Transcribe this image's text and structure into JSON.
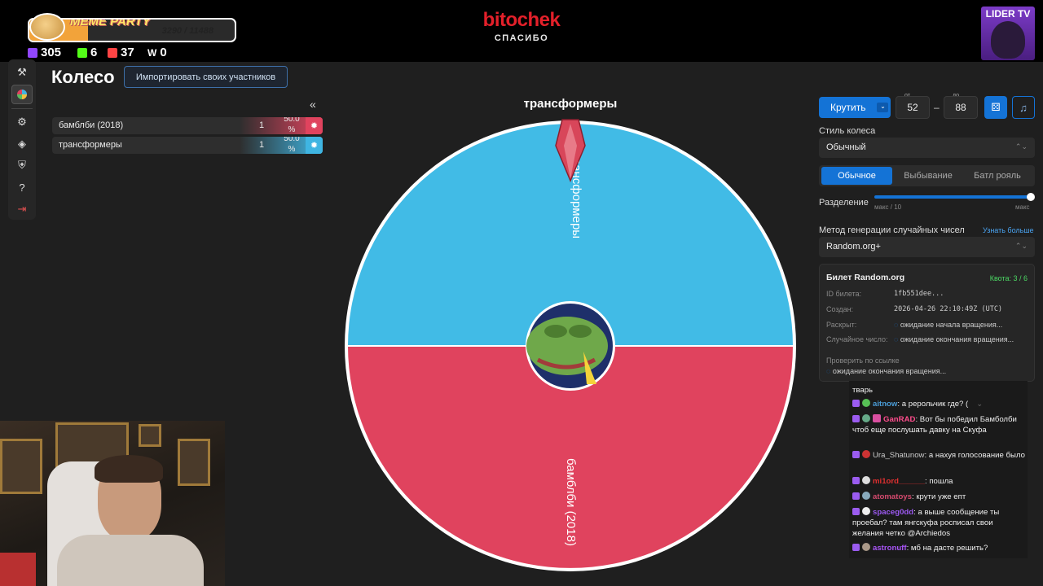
{
  "overlay": {
    "meme_title": "MEME PARTY",
    "meme_count": "3290 / 11488",
    "meme_progress": 0.286,
    "stats": [
      {
        "icon": "twitch-icon",
        "value": "305",
        "color": "#9146ff"
      },
      {
        "icon": "kick-icon",
        "value": "6",
        "color": "#53fc18"
      },
      {
        "icon": "vk-live-icon",
        "value": "37",
        "color": "#ff4444"
      },
      {
        "icon": "w-icon",
        "value": "0",
        "color": "#ffffff"
      }
    ],
    "brand": "bitochek",
    "brand_sub": "СПАСИБО",
    "channel_badge": "LIDER TV"
  },
  "sidebar": {
    "items": [
      {
        "icon": "gavel-icon",
        "active": false
      },
      {
        "icon": "wheel-icon",
        "active": true
      },
      {
        "icon": "gear-icon",
        "active": false
      },
      {
        "icon": "layers-icon",
        "active": false
      },
      {
        "icon": "shield-icon",
        "active": false
      },
      {
        "icon": "help-icon",
        "active": false
      },
      {
        "icon": "logout-icon",
        "active": false
      }
    ]
  },
  "main": {
    "title": "Колесо",
    "import_label": "Импортировать своих участников",
    "collapse_label": "«",
    "participants": [
      {
        "name": "бамблби (2018)",
        "weight": "1",
        "percent": "50.0\n%",
        "color": "#e0435e"
      },
      {
        "name": "трансформеры",
        "weight": "1",
        "percent": "50.0\n%",
        "color": "#3fb5e2"
      }
    ]
  },
  "wheel": {
    "current": "трансформеры",
    "colors": {
      "top": "#41bbe6",
      "bottom": "#e0435e",
      "pointer": "#d8465a"
    },
    "segments": [
      {
        "label": "трансформеры",
        "color": "#41bbe6",
        "value": 50
      },
      {
        "label": "бамблби (2018)",
        "color": "#e0435e",
        "value": 50
      }
    ]
  },
  "controls": {
    "spin_label": "Крутить",
    "from_label": "от",
    "from_value": "52",
    "to_label": "до",
    "to_value": "88",
    "dash": "–",
    "style_label": "Стиль колеса",
    "style_value": "Обычный",
    "modes": [
      "Обычное",
      "Выбывание",
      "Батл рояль"
    ],
    "active_mode": 0,
    "split_label": "Разделение",
    "split_min": "макс / 10",
    "split_max": "макс",
    "rng_label": "Метод генерации случайных чисел",
    "rng_more": "Узнать больше",
    "rng_value": "Random.org+"
  },
  "ticket": {
    "title": "Билет Random.org",
    "quota": "Квота: 3 / 6",
    "rows": [
      {
        "k": "ID билета:",
        "v": "1fb551dee..."
      },
      {
        "k": "Создан:",
        "v": "2026-04-26 22:10:49Z (UTC)"
      },
      {
        "k": "Раскрыт:",
        "v": "ожидание начала вращения..."
      },
      {
        "k": "Случайное число:",
        "v": "ожидание окончания вращения..."
      }
    ],
    "verify_label": "Проверить по ссылке",
    "verify_value": "ожидание окончания вращения..."
  },
  "chat": [
    {
      "user": "",
      "text": "тварь",
      "color": "#eee"
    },
    {
      "user": "aitnow",
      "text": "а рерольчик где? (",
      "color": "#4a9cd6"
    },
    {
      "user": "GanRAD",
      "text": "Вот бы победил Бамболби чтоб еще послушать давку на Скуфа",
      "color": "#ff4d8d"
    },
    {
      "user": "Ura_Shatunow",
      "text": "а нахуя голосование было",
      "color": "#cccccc"
    },
    {
      "user": "mi1ord______",
      "text": "пошла",
      "color": "#e03030"
    },
    {
      "user": "atomatoys",
      "text": "крути уже епт",
      "color": "#d44a6e"
    },
    {
      "user": "spaceg0dd",
      "text": "а выше сообщение ты проебал? там янгскуфа росписал свои желания четко @Archiedos",
      "color": "#9b59f0"
    },
    {
      "user": "astronuff",
      "text": "мб на дасте решить?",
      "color": "#a855f7"
    }
  ]
}
